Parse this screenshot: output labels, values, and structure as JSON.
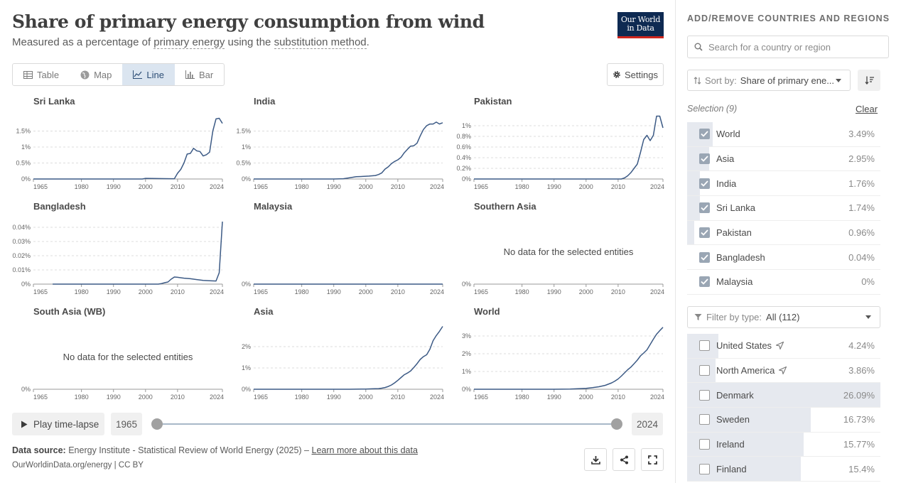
{
  "header": {
    "title": "Share of primary energy consumption from wind",
    "subtitle_prefix": "Measured as a percentage of ",
    "subtitle_link1": "primary energy",
    "subtitle_mid": " using the ",
    "subtitle_link2": "substitution method",
    "subtitle_suffix": ".",
    "logo_line1": "Our World",
    "logo_line2": "in Data"
  },
  "tabs": [
    {
      "label": "Table",
      "icon": "table-icon",
      "active": false
    },
    {
      "label": "Map",
      "icon": "globe-icon",
      "active": false
    },
    {
      "label": "Line",
      "icon": "line-chart-icon",
      "active": true
    },
    {
      "label": "Bar",
      "icon": "bar-chart-icon",
      "active": false
    }
  ],
  "settings_label": "Settings",
  "timeline": {
    "play_label": "Play time-lapse",
    "start_year": "1965",
    "end_year": "2024"
  },
  "footer": {
    "source_label": "Data source:",
    "source_text": " Energy Institute - Statistical Review of World Energy (2025) – ",
    "source_link": "Learn more about this data",
    "credit": "OurWorldinData.org/energy | CC BY"
  },
  "no_data_message": "No data for the selected entities",
  "chart_data": [
    {
      "type": "line",
      "title": "Sri Lanka",
      "x_ticks": [
        "1965",
        "1980",
        "1990",
        "2000",
        "2010",
        "2024"
      ],
      "y_ticks": [
        "0%",
        "0.5%",
        "1%",
        "1.5%"
      ],
      "ylim": [
        0,
        2.0
      ],
      "x": [
        1965,
        1990,
        1999,
        2000,
        2008,
        2009,
        2010,
        2011,
        2012,
        2013,
        2014,
        2015,
        2016,
        2017,
        2018,
        2019,
        2020,
        2021,
        2022,
        2023,
        2024
      ],
      "values": [
        0,
        0,
        0,
        0.02,
        0.01,
        0.01,
        0.18,
        0.3,
        0.5,
        0.78,
        0.8,
        0.96,
        0.88,
        0.86,
        0.72,
        0.76,
        0.84,
        1.5,
        1.88,
        1.9,
        1.74
      ]
    },
    {
      "type": "line",
      "title": "India",
      "x_ticks": [
        "1965",
        "1980",
        "1990",
        "2000",
        "2010",
        "2024"
      ],
      "y_ticks": [
        "0%",
        "0.5%",
        "1%",
        "1.5%"
      ],
      "ylim": [
        0,
        2.0
      ],
      "x": [
        1965,
        1990,
        1993,
        1995,
        1997,
        1999,
        2001,
        2003,
        2004,
        2005,
        2006,
        2007,
        2008,
        2009,
        2010,
        2011,
        2012,
        2013,
        2014,
        2015,
        2016,
        2017,
        2018,
        2019,
        2020,
        2021,
        2022,
        2023,
        2024
      ],
      "values": [
        0,
        0,
        0.01,
        0.04,
        0.07,
        0.08,
        0.09,
        0.11,
        0.14,
        0.19,
        0.31,
        0.38,
        0.48,
        0.55,
        0.6,
        0.68,
        0.82,
        0.93,
        1.03,
        1.04,
        1.12,
        1.35,
        1.55,
        1.67,
        1.72,
        1.72,
        1.78,
        1.72,
        1.76
      ]
    },
    {
      "type": "line",
      "title": "Pakistan",
      "x_ticks": [
        "1965",
        "1980",
        "1990",
        "2000",
        "2010",
        "2024"
      ],
      "y_ticks": [
        "0%",
        "0.2%",
        "0.4%",
        "0.6%",
        "0.8%",
        "1%"
      ],
      "ylim": [
        0,
        1.2
      ],
      "x": [
        1965,
        2011,
        2012,
        2013,
        2014,
        2015,
        2016,
        2017,
        2018,
        2019,
        2020,
        2021,
        2022,
        2023,
        2024
      ],
      "values": [
        0,
        0,
        0.02,
        0.06,
        0.12,
        0.2,
        0.28,
        0.5,
        0.74,
        0.82,
        0.72,
        0.82,
        1.18,
        1.18,
        0.96
      ]
    },
    {
      "type": "line",
      "title": "Bangladesh",
      "x_ticks": [
        "1965",
        "1980",
        "1990",
        "2000",
        "2010",
        "2024"
      ],
      "y_ticks": [
        "0%",
        "0.01%",
        "0.02%",
        "0.03%",
        "0.04%"
      ],
      "ylim": [
        0,
        0.045
      ],
      "x": [
        1971,
        2004,
        2005,
        2006,
        2007,
        2008,
        2009,
        2010,
        2012,
        2014,
        2016,
        2018,
        2020,
        2022,
        2023,
        2024
      ],
      "values": [
        0,
        0,
        0.0004,
        0.001,
        0.0015,
        0.0035,
        0.005,
        0.0048,
        0.0042,
        0.0038,
        0.0032,
        0.0026,
        0.0024,
        0.0022,
        0.008,
        0.044
      ]
    },
    {
      "type": "line",
      "title": "Malaysia",
      "x_ticks": [
        "1965",
        "1980",
        "1990",
        "2000",
        "2010",
        "2024"
      ],
      "y_ticks": [
        "0%"
      ],
      "ylim": [
        0,
        1
      ],
      "x": [
        1965,
        2024
      ],
      "values": [
        0,
        0
      ]
    },
    {
      "type": "line",
      "title": "Southern Asia",
      "x_ticks": [
        "1965",
        "1980",
        "1990",
        "2000",
        "2010",
        "2024"
      ],
      "y_ticks": [
        "0%"
      ],
      "ylim": [
        0,
        1
      ],
      "x": [],
      "values": [],
      "no_data": true
    },
    {
      "type": "line",
      "title": "South Asia (WB)",
      "x_ticks": [
        "1965",
        "1980",
        "1990",
        "2000",
        "2010",
        "2024"
      ],
      "y_ticks": [
        "0%"
      ],
      "ylim": [
        0,
        1
      ],
      "x": [],
      "values": [],
      "no_data": true
    },
    {
      "type": "line",
      "title": "Asia",
      "x_ticks": [
        "1965",
        "1980",
        "1990",
        "2000",
        "2010",
        "2024"
      ],
      "y_ticks": [
        "0%",
        "1%",
        "2%"
      ],
      "ylim": [
        0,
        3.0
      ],
      "x": [
        1965,
        1995,
        2000,
        2002,
        2004,
        2005,
        2006,
        2007,
        2008,
        2009,
        2010,
        2011,
        2012,
        2013,
        2014,
        2015,
        2016,
        2017,
        2018,
        2019,
        2020,
        2021,
        2022,
        2023,
        2024
      ],
      "values": [
        0,
        0,
        0.01,
        0.02,
        0.03,
        0.05,
        0.08,
        0.13,
        0.2,
        0.3,
        0.42,
        0.55,
        0.68,
        0.76,
        0.86,
        1.02,
        1.2,
        1.4,
        1.53,
        1.62,
        1.88,
        2.28,
        2.52,
        2.72,
        2.95
      ]
    },
    {
      "type": "line",
      "title": "World",
      "x_ticks": [
        "1965",
        "1980",
        "1990",
        "2000",
        "2010",
        "2024"
      ],
      "y_ticks": [
        "0%",
        "1%",
        "2%",
        "3%"
      ],
      "ylim": [
        0,
        3.6
      ],
      "x": [
        1965,
        1990,
        1995,
        2000,
        2002,
        2004,
        2006,
        2008,
        2009,
        2010,
        2011,
        2012,
        2013,
        2014,
        2015,
        2016,
        2017,
        2018,
        2019,
        2020,
        2021,
        2022,
        2023,
        2024
      ],
      "values": [
        0,
        0,
        0.01,
        0.05,
        0.09,
        0.14,
        0.22,
        0.36,
        0.46,
        0.58,
        0.74,
        0.92,
        1.1,
        1.25,
        1.44,
        1.64,
        1.88,
        2.04,
        2.22,
        2.52,
        2.82,
        3.1,
        3.3,
        3.49
      ]
    }
  ],
  "sidebar": {
    "heading": "ADD/REMOVE COUNTRIES AND REGIONS",
    "search_placeholder": "Search for a country or region",
    "sort_label": "Sort by: ",
    "sort_value": "Share of primary ene...",
    "selection_label": "Selection (9)",
    "clear_label": "Clear",
    "selected": [
      {
        "name": "World",
        "value": "3.49%",
        "share": 0.134
      },
      {
        "name": "Asia",
        "value": "2.95%",
        "share": 0.113
      },
      {
        "name": "India",
        "value": "1.76%",
        "share": 0.067
      },
      {
        "name": "Sri Lanka",
        "value": "1.74%",
        "share": 0.067
      },
      {
        "name": "Pakistan",
        "value": "0.96%",
        "share": 0.037
      },
      {
        "name": "Bangladesh",
        "value": "0.04%",
        "share": 0.0
      },
      {
        "name": "Malaysia",
        "value": "0%",
        "share": 0.0
      }
    ],
    "filter_label": "Filter by type: ",
    "filter_value": "All (112)",
    "others": [
      {
        "name": "United States",
        "value": "4.24%",
        "share": 0.163,
        "arrow": true
      },
      {
        "name": "North America",
        "value": "3.86%",
        "share": 0.148,
        "arrow": true
      },
      {
        "name": "Denmark",
        "value": "26.09%",
        "share": 1.0,
        "arrow": false
      },
      {
        "name": "Sweden",
        "value": "16.73%",
        "share": 0.641,
        "arrow": false
      },
      {
        "name": "Ireland",
        "value": "15.77%",
        "share": 0.604,
        "arrow": false
      },
      {
        "name": "Finland",
        "value": "15.4%",
        "share": 0.59,
        "arrow": false
      }
    ]
  }
}
